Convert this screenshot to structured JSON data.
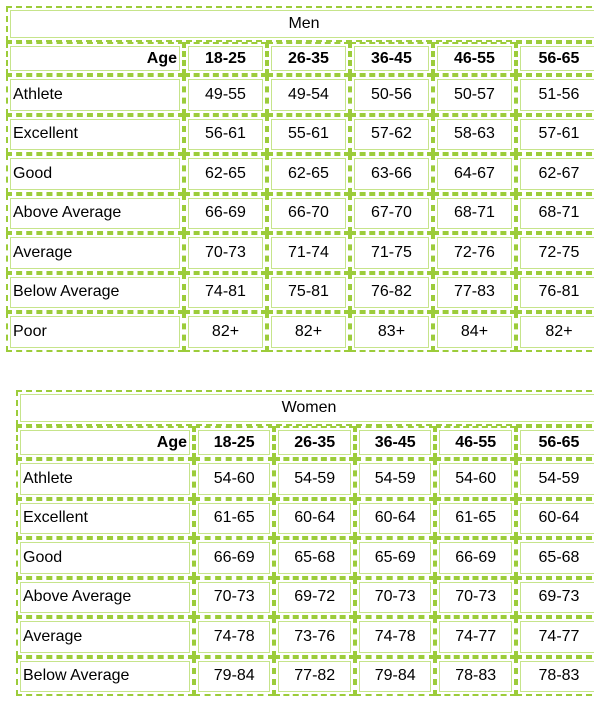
{
  "men": {
    "title": "Men",
    "age_label": "Age",
    "columns": [
      "18-25",
      "26-35",
      "36-45",
      "46-55",
      "56-65"
    ],
    "rows": [
      {
        "label": "Athlete",
        "values": [
          "49-55",
          "49-54",
          "50-56",
          "50-57",
          "51-56"
        ]
      },
      {
        "label": "Excellent",
        "values": [
          "56-61",
          "55-61",
          "57-62",
          "58-63",
          "57-61"
        ]
      },
      {
        "label": "Good",
        "values": [
          "62-65",
          "62-65",
          "63-66",
          "64-67",
          "62-67"
        ]
      },
      {
        "label": "Above Average",
        "values": [
          "66-69",
          "66-70",
          "67-70",
          "68-71",
          "68-71"
        ]
      },
      {
        "label": "Average",
        "values": [
          "70-73",
          "71-74",
          "71-75",
          "72-76",
          "72-75"
        ]
      },
      {
        "label": "Below Average",
        "values": [
          "74-81",
          "75-81",
          "76-82",
          "77-83",
          "76-81"
        ]
      },
      {
        "label": "Poor",
        "values": [
          "82+",
          "82+",
          "83+",
          "84+",
          "82+"
        ]
      }
    ]
  },
  "women": {
    "title": "Women",
    "age_label": "Age",
    "columns": [
      "18-25",
      "26-35",
      "36-45",
      "46-55",
      "56-65"
    ],
    "rows": [
      {
        "label": "Athlete",
        "values": [
          "54-60",
          "54-59",
          "54-59",
          "54-60",
          "54-59"
        ]
      },
      {
        "label": "Excellent",
        "values": [
          "61-65",
          "60-64",
          "60-64",
          "61-65",
          "60-64"
        ]
      },
      {
        "label": "Good",
        "values": [
          "66-69",
          "65-68",
          "65-69",
          "66-69",
          "65-68"
        ]
      },
      {
        "label": "Above Average",
        "values": [
          "70-73",
          "69-72",
          "70-73",
          "70-73",
          "69-73"
        ]
      },
      {
        "label": "Average",
        "values": [
          "74-78",
          "73-76",
          "74-78",
          "74-77",
          "74-77"
        ]
      },
      {
        "label": "Below Average",
        "values": [
          "79-84",
          "77-82",
          "79-84",
          "78-83",
          "78-83"
        ]
      }
    ]
  }
}
